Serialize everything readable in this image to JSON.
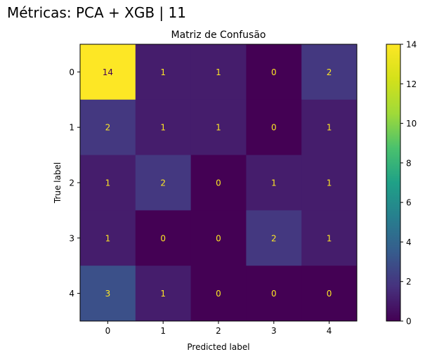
{
  "figure": {
    "suptitle": "Métricas: PCA + XGB | 11"
  },
  "chart_data": {
    "type": "heatmap",
    "title": "Matriz de Confusão",
    "xlabel": "Predicted label",
    "ylabel": "True label",
    "x_categories": [
      "0",
      "1",
      "2",
      "3",
      "4"
    ],
    "y_categories": [
      "0",
      "1",
      "2",
      "3",
      "4"
    ],
    "matrix": [
      [
        14,
        1,
        1,
        0,
        2
      ],
      [
        2,
        1,
        1,
        0,
        1
      ],
      [
        1,
        2,
        0,
        1,
        1
      ],
      [
        1,
        0,
        0,
        2,
        1
      ],
      [
        3,
        1,
        0,
        0,
        0
      ]
    ],
    "colormap": "viridis",
    "value_range": [
      0,
      14
    ],
    "colorbar": {
      "ticks": [
        "0",
        "2",
        "4",
        "6",
        "8",
        "10",
        "12",
        "14"
      ]
    },
    "text_color_dark_cells": "#fde725",
    "text_color_light_cells": "#440154",
    "grid": false
  }
}
